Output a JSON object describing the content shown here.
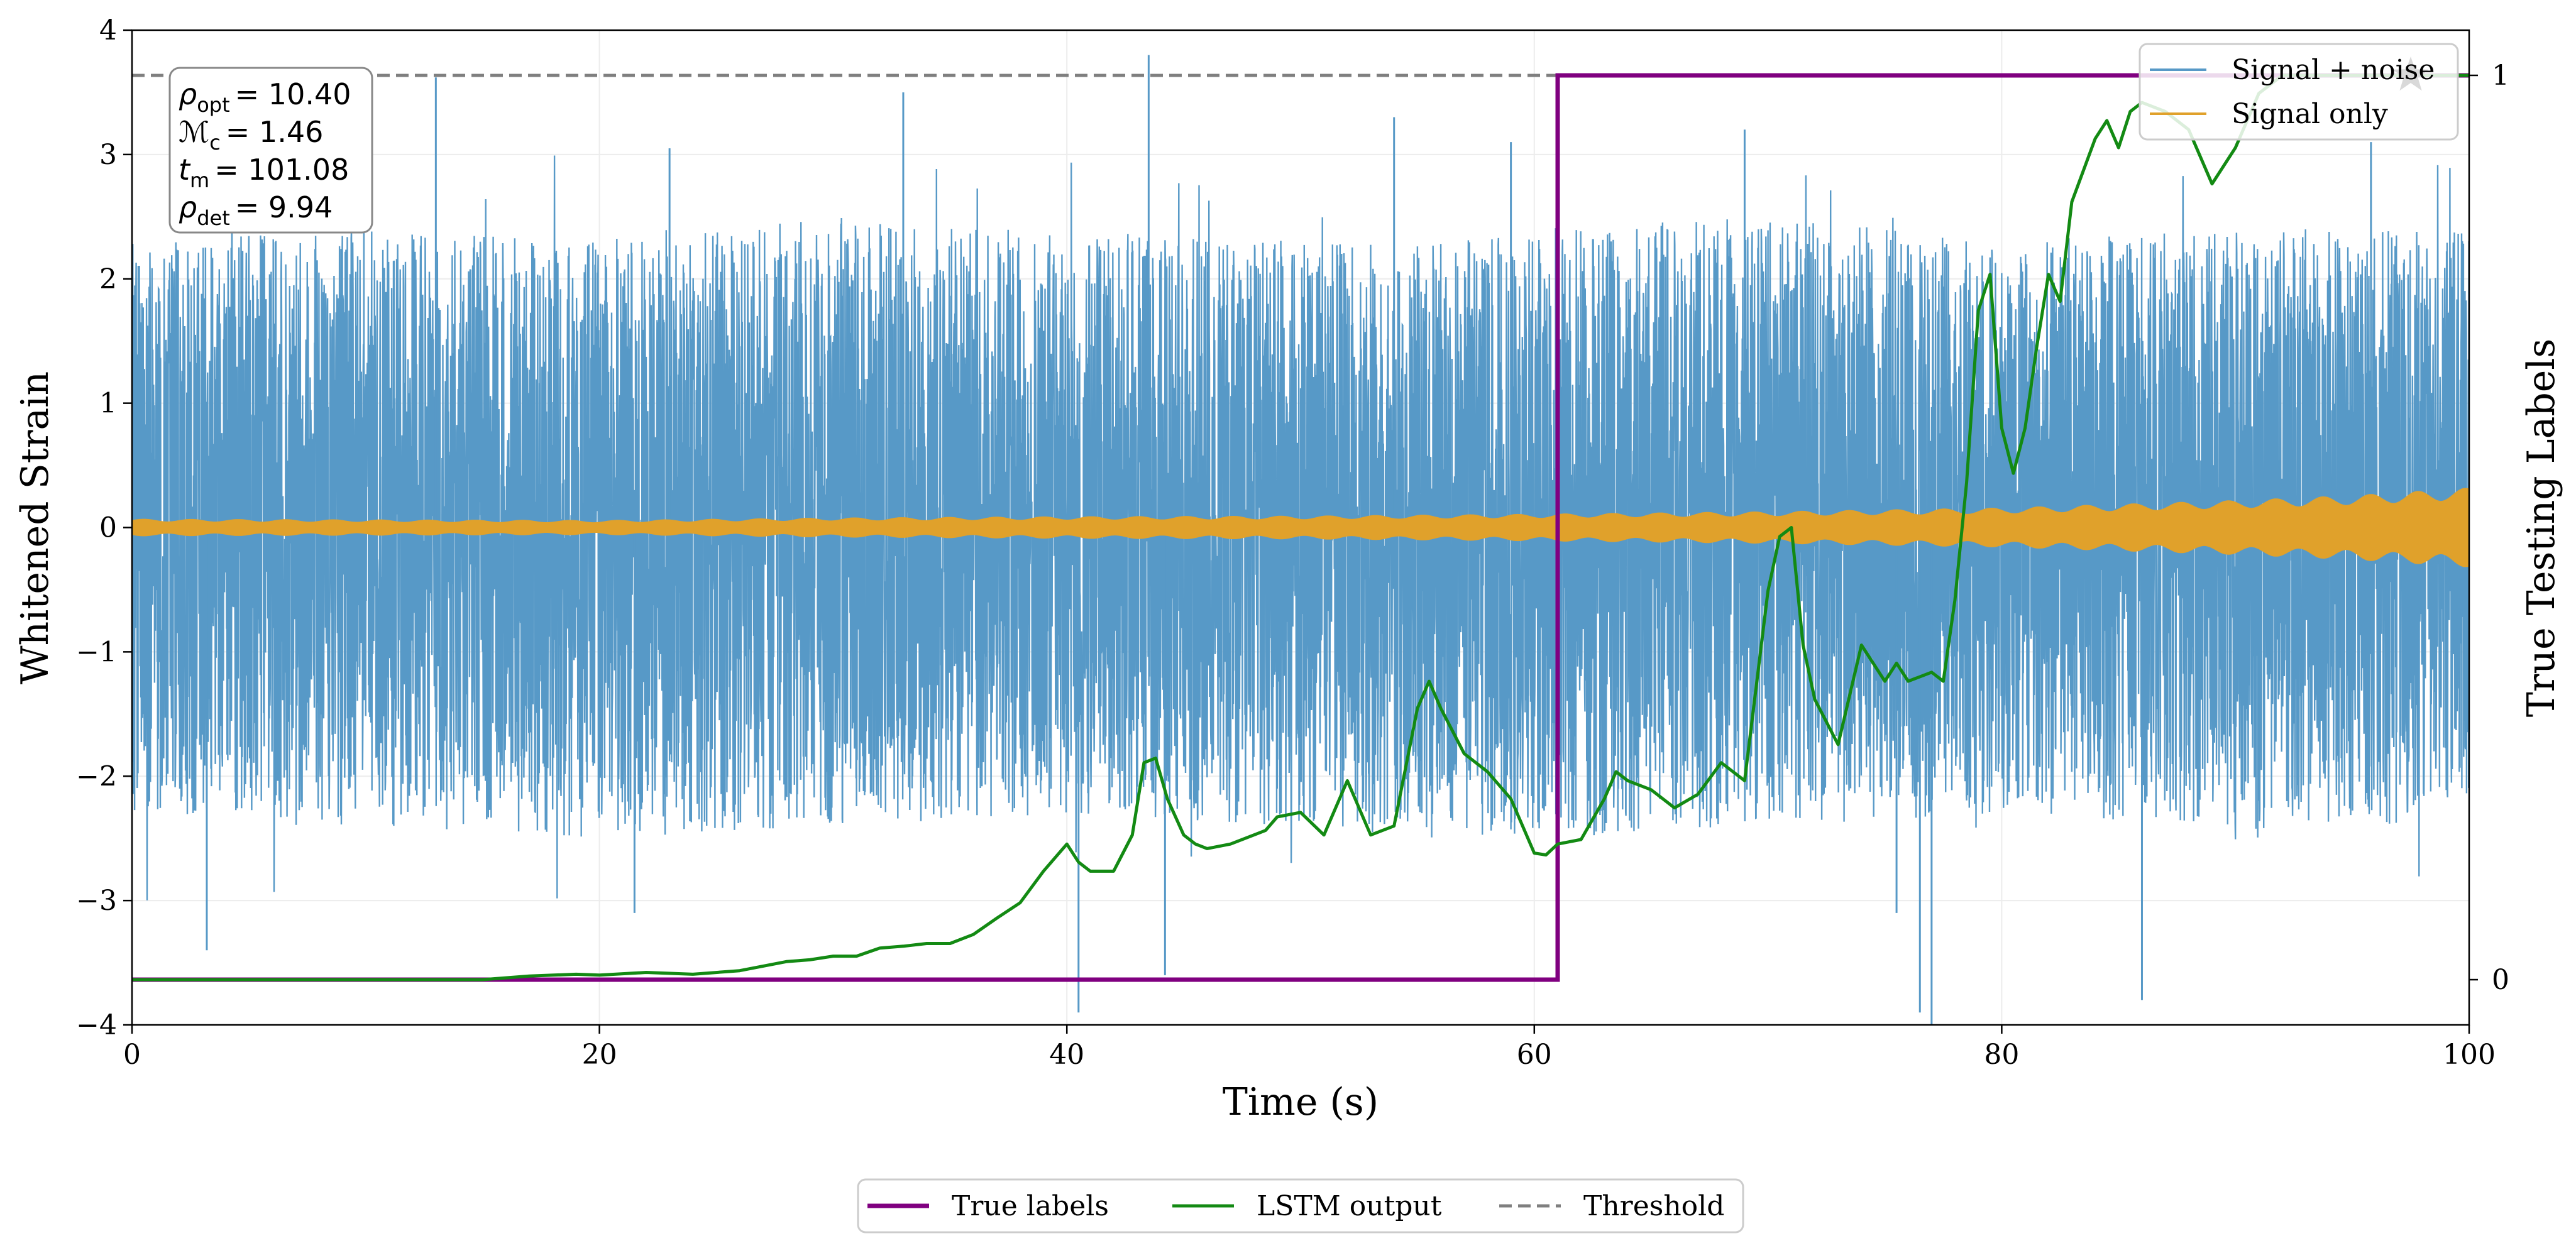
{
  "chart_data": {
    "type": "line",
    "xlabel": "Time (s)",
    "ylabel": "Whitened Strain",
    "y2label": "True Testing Labels",
    "xlim": [
      0,
      100
    ],
    "ylim": [
      -4,
      4
    ],
    "y2lim": [
      -0.05,
      1.05
    ],
    "xticks": [
      0,
      20,
      40,
      60,
      80,
      100
    ],
    "xtick_labels": [
      "0",
      "20",
      "40",
      "60",
      "80",
      "100"
    ],
    "yticks": [
      -4,
      -3,
      -2,
      -1,
      0,
      1,
      2,
      3,
      4
    ],
    "ytick_labels": [
      "−4",
      "−3",
      "−2",
      "−1",
      "0",
      "1",
      "2",
      "3",
      "4"
    ],
    "y2ticks": [
      0,
      1
    ],
    "y2tick_labels": [
      "0",
      "1"
    ],
    "grid": true,
    "threshold": 1,
    "label_step_time": 61,
    "marker_point": {
      "x": 97.5,
      "y": 1
    },
    "annotation_lines": [
      {
        "sym": "ρ",
        "sub": "opt",
        "eq": "= 10.40"
      },
      {
        "sym": "ℳ",
        "sub": "c",
        "eq": "= 1.46"
      },
      {
        "sym": "t",
        "sub": "m",
        "eq": "= 101.08"
      },
      {
        "sym": "ρ",
        "sub": "det",
        "eq": "= 9.94"
      }
    ],
    "legend_top": [
      "Signal + noise",
      "Signal only"
    ],
    "legend_bottom": [
      "True labels",
      "LSTM output",
      "Threshold"
    ],
    "series": [
      {
        "name": "Signal + noise",
        "color": "#5799c7",
        "envelope_top": [
          2.3,
          2.4,
          2.3,
          2.5,
          2.4,
          2.3,
          2.4,
          2.5,
          2.3,
          2.4,
          2.4
        ],
        "envelope_bottom": [
          -2.3,
          -2.4,
          -2.5,
          -2.4,
          -2.3,
          -2.4,
          -2.5,
          -2.4,
          -2.3,
          -2.4,
          -2.4
        ],
        "spikes": [
          [
            13,
            3.62
          ],
          [
            43.5,
            3.8
          ],
          [
            40.5,
            -3.9
          ],
          [
            44.2,
            -3.6
          ],
          [
            3.2,
            -3.4
          ],
          [
            23,
            3.05
          ],
          [
            33,
            3.5
          ],
          [
            76.5,
            -3.9
          ],
          [
            77,
            -4.0
          ],
          [
            86,
            -3.8
          ],
          [
            75.5,
            -3.1
          ],
          [
            21.5,
            -3.1
          ],
          [
            54,
            3.3
          ],
          [
            95.8,
            3.1
          ],
          [
            59,
            3.1
          ],
          [
            69,
            3.2
          ]
        ]
      },
      {
        "name": "Signal only",
        "color": "#e0a12b",
        "amp_t": [
          0,
          10,
          20,
          30,
          40,
          50,
          60,
          70,
          80,
          85,
          90,
          95,
          100
        ],
        "amp": [
          0.07,
          0.065,
          0.06,
          0.08,
          0.09,
          0.095,
          0.11,
          0.13,
          0.16,
          0.19,
          0.22,
          0.26,
          0.32
        ]
      },
      {
        "name": "True labels",
        "color": "#800080",
        "x": [
          0,
          61,
          61,
          100
        ],
        "values": [
          0,
          0,
          1,
          1
        ]
      },
      {
        "name": "LSTM output",
        "color": "#138a13",
        "x": [
          0,
          5,
          10,
          15,
          17,
          19,
          20,
          22,
          24,
          26,
          28,
          29,
          30,
          31,
          32,
          33,
          34,
          35,
          36,
          37,
          38,
          39,
          40,
          40.5,
          41,
          42,
          42.8,
          43.3,
          43.8,
          44.3,
          45,
          45.5,
          46,
          47,
          48,
          48.5,
          49,
          50,
          51,
          52,
          53,
          54,
          55,
          55.5,
          56,
          57,
          58,
          59,
          60,
          60.5,
          61,
          62,
          63,
          63.5,
          64,
          65,
          66,
          67,
          68,
          69,
          70,
          70.5,
          71,
          71.5,
          72,
          73,
          74,
          75,
          75.5,
          76,
          77,
          77.5,
          78,
          78.5,
          79,
          79.5,
          80,
          80.5,
          81,
          81.5,
          82,
          82.5,
          83,
          84,
          84.5,
          85,
          85.5,
          86,
          87,
          88,
          89,
          90,
          91,
          92,
          93,
          95,
          100
        ],
        "values": [
          0,
          0,
          0,
          0,
          0.004,
          0.006,
          0.005,
          0.008,
          0.006,
          0.01,
          0.02,
          0.022,
          0.026,
          0.026,
          0.035,
          0.037,
          0.04,
          0.04,
          0.05,
          0.068,
          0.085,
          0.12,
          0.15,
          0.13,
          0.12,
          0.12,
          0.16,
          0.24,
          0.245,
          0.2,
          0.16,
          0.15,
          0.145,
          0.15,
          0.16,
          0.165,
          0.18,
          0.185,
          0.16,
          0.22,
          0.16,
          0.17,
          0.3,
          0.33,
          0.3,
          0.25,
          0.23,
          0.2,
          0.14,
          0.138,
          0.15,
          0.155,
          0.2,
          0.23,
          0.22,
          0.21,
          0.19,
          0.205,
          0.24,
          0.22,
          0.43,
          0.49,
          0.5,
          0.37,
          0.31,
          0.26,
          0.37,
          0.33,
          0.35,
          0.33,
          0.34,
          0.33,
          0.42,
          0.55,
          0.74,
          0.78,
          0.61,
          0.56,
          0.61,
          0.7,
          0.78,
          0.75,
          0.86,
          0.93,
          0.95,
          0.92,
          0.96,
          0.97,
          0.96,
          0.94,
          0.88,
          0.92,
          0.98,
          1.0,
          1.0,
          1.0,
          1.0
        ]
      }
    ]
  }
}
